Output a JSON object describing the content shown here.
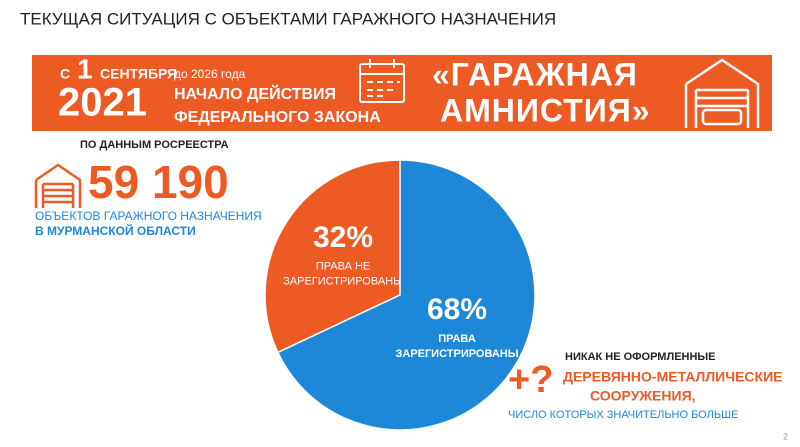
{
  "header": {
    "title": "ТЕКУЩАЯ СИТУАЦИЯ С ОБЪЕКТАМИ ГАРАЖНОГО НАЗНАЧЕНИЯ"
  },
  "banner": {
    "prefix": "С",
    "day": "1",
    "month": "СЕНТЯБРЯ",
    "until": "до 2026 года",
    "year": "2021",
    "law_lines": [
      "НАЧАЛО ДЕЙСТВИЯ",
      "ФЕДЕРАЛЬНОГО ЗАКОНА"
    ],
    "amnesty_lines": [
      "«ГАРАЖНАЯ",
      "АМНИСТИЯ»"
    ]
  },
  "stats": {
    "source": "ПО ДАННЫМ РОСРЕЕСТРА",
    "count": "59 190",
    "lines": [
      "ОБЪЕКТОВ ГАРАЖНОГО НАЗНАЧЕНИЯ",
      "В МУРМАНСКОЙ ОБЛАСТИ"
    ]
  },
  "chart_data": {
    "type": "pie",
    "categories": [
      [
        "ПРАВА НЕ",
        "ЗАРЕГИСТРИРОВАНЫ"
      ],
      [
        "ПРАВА",
        "ЗАРЕГИСТРИРОВАНЫ"
      ]
    ],
    "values": [
      32,
      68
    ],
    "value_labels": [
      "32%",
      "68%"
    ],
    "colors": [
      "#ee5a24",
      "#1e88d8"
    ]
  },
  "note": {
    "icon": "+?",
    "lines": [
      "НИКАК НЕ ОФОРМЛЕННЫЕ",
      "ДЕРЕВЯННО-МЕТАЛЛИЧЕСКИЕ",
      "СООРУЖЕНИЯ,",
      "ЧИСЛО КОТОРЫХ ЗНАЧИТЕЛЬНО БОЛЬШЕ"
    ]
  },
  "page_number": "2"
}
